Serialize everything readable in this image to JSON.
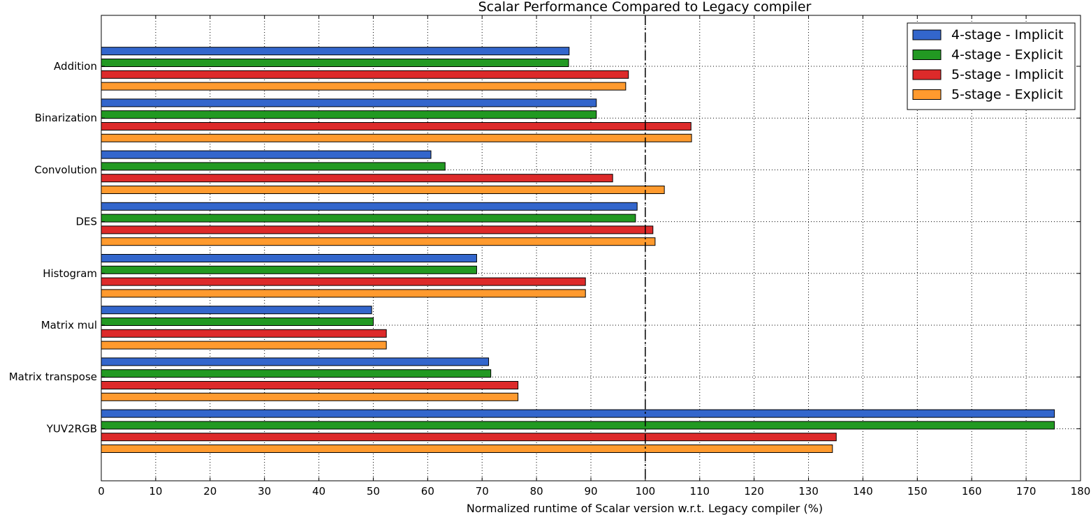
{
  "chart_data": {
    "type": "bar",
    "orientation": "horizontal",
    "title": "Scalar Performance Compared to Legacy compiler",
    "xlabel": "Normalized runtime of Scalar version w.r.t. Legacy compiler (%)",
    "ylabel": "",
    "xlim": [
      0,
      180
    ],
    "xticks": [
      "0",
      "10",
      "20",
      "30",
      "40",
      "50",
      "60",
      "70",
      "80",
      "90",
      "100",
      "110",
      "120",
      "130",
      "140",
      "150",
      "160",
      "170",
      "180"
    ],
    "grid": true,
    "reference_line": 100,
    "legend_position": "top-right",
    "categories": [
      "Addition",
      "Binarization",
      "Convolution",
      "DES",
      "Histogram",
      "Matrix mul",
      "Matrix transpose",
      "YUV2RGB"
    ],
    "series": [
      {
        "name": "4-stage - Implicit",
        "color": "#3366cc",
        "values": [
          86.0,
          91.0,
          60.6,
          98.5,
          69.0,
          49.7,
          71.2,
          175.2
        ]
      },
      {
        "name": "4-stage - Explicit",
        "color": "#229922",
        "values": [
          85.9,
          91.0,
          63.2,
          98.2,
          69.0,
          50.0,
          71.6,
          175.2
        ]
      },
      {
        "name": "5-stage - Implicit",
        "color": "#dd2a2a",
        "values": [
          96.9,
          108.4,
          94.0,
          101.4,
          89.0,
          52.4,
          76.6,
          135.1
        ]
      },
      {
        "name": "5-stage - Explicit",
        "color": "#ff9a2e",
        "values": [
          96.4,
          108.5,
          103.5,
          101.8,
          89.0,
          52.4,
          76.6,
          134.4
        ]
      }
    ]
  }
}
